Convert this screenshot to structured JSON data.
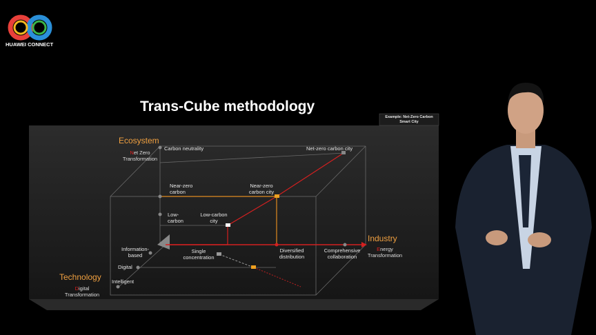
{
  "logo": {
    "text": "HUAWEI CONNECT"
  },
  "slide": {
    "title": "Trans-Cube methodology",
    "example": "Example: Net-Zero Carbon Smart City",
    "axes": {
      "ecosystem": {
        "name": "Ecosystem",
        "subtitle": "Net Zero Transformation"
      },
      "industry": {
        "name": "Industry",
        "subtitle": "Energy Transformation"
      },
      "technology": {
        "name": "Technology",
        "subtitle": "Digital Transformation"
      }
    },
    "nodes": [
      "Carbon neutrality",
      "Net-zero carbon city",
      "Near-zero carbon",
      "Near-zero carbon city",
      "Low-carbon",
      "Low-carbon city",
      "Information-based",
      "Single concentration",
      "Diversified distribution",
      "Comprehensive collaboration",
      "Digital",
      "Intelligent"
    ]
  }
}
